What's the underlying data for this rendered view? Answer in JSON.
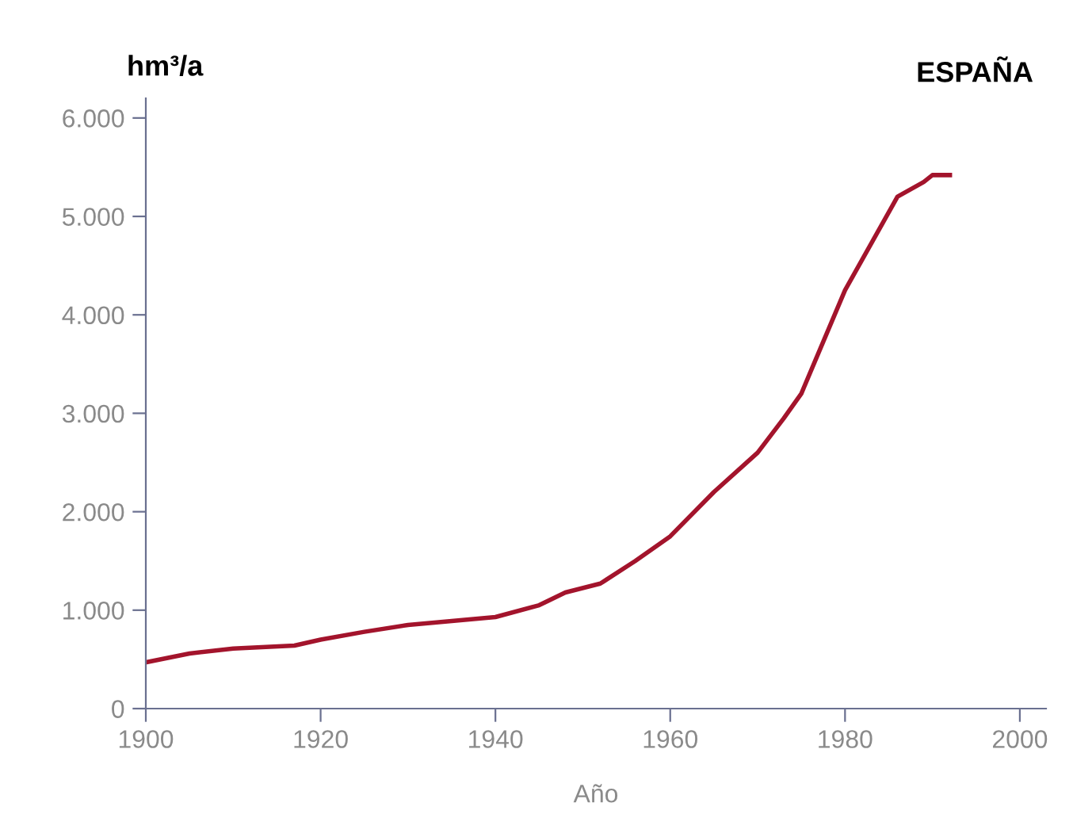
{
  "chart_data": {
    "type": "line",
    "title": "ESPAÑA",
    "ylabel": "hm³/a",
    "xlabel": "Año",
    "x": [
      1900,
      1905,
      1910,
      1917,
      1920,
      1925,
      1930,
      1935,
      1940,
      1945,
      1948,
      1952,
      1956,
      1960,
      1965,
      1970,
      1973,
      1975,
      1980,
      1986,
      1989,
      1990,
      1992
    ],
    "series": [
      {
        "color": "#a3142c",
        "values": [
          470,
          560,
          610,
          640,
          700,
          780,
          850,
          890,
          930,
          1050,
          1180,
          1270,
          1500,
          1750,
          2200,
          2600,
          2950,
          3200,
          4250,
          5200,
          5350,
          5420,
          5420
        ]
      }
    ],
    "xlim": [
      1900,
      2003
    ],
    "ylim": [
      0,
      6200
    ],
    "xticks": [
      1900,
      1920,
      1940,
      1960,
      1980,
      2000
    ],
    "yticks": [
      0,
      {
        "value": 1000,
        "label": "1.000"
      },
      {
        "value": 2000,
        "label": "2.000"
      },
      {
        "value": 3000,
        "label": "3.000"
      },
      {
        "value": 4000,
        "label": "4.000"
      },
      {
        "value": 5000,
        "label": "5.000"
      },
      {
        "value": 6000,
        "label": "6.000"
      }
    ],
    "grid": false,
    "legend": false,
    "marker": "none",
    "line_style": "solid"
  }
}
